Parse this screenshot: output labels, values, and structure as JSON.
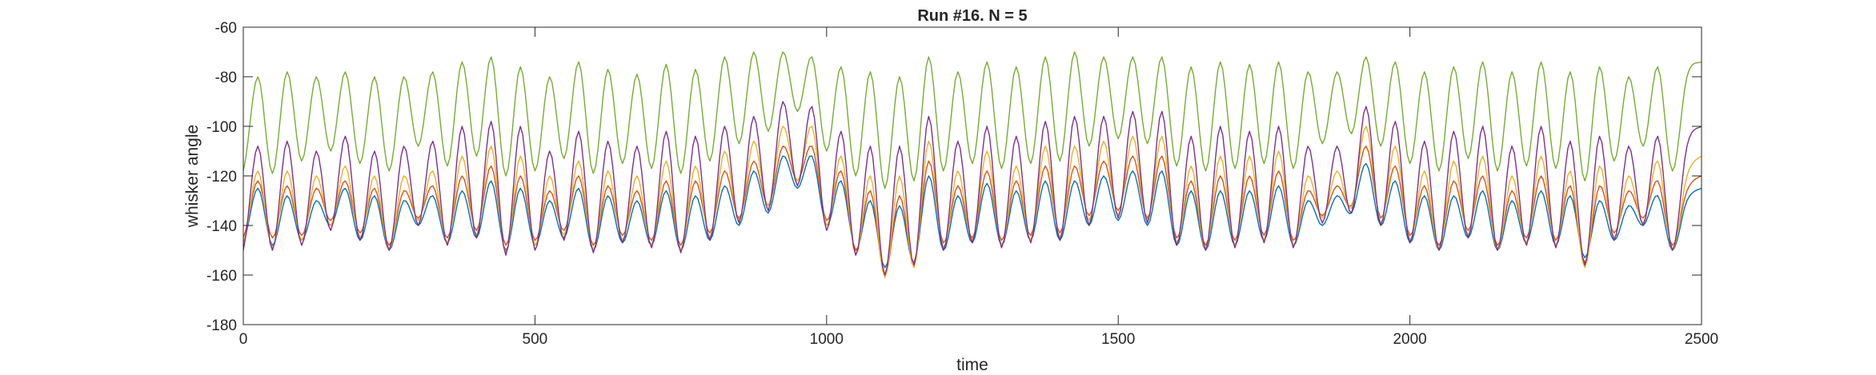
{
  "chart_data": {
    "type": "line",
    "title": "Run #16. N = 5",
    "xlabel": "time",
    "ylabel": "whisker angle",
    "xlim": [
      0,
      2500
    ],
    "ylim": [
      -180,
      -60
    ],
    "xticks": [
      0,
      500,
      1000,
      1500,
      2000,
      2500
    ],
    "yticks": [
      -180,
      -160,
      -140,
      -120,
      -100,
      -80,
      -60
    ],
    "grid": false,
    "legend": "none",
    "series_colors": [
      "#0072BD",
      "#D95319",
      "#EDB120",
      "#7E2F8E",
      "#77AC30"
    ],
    "x": [
      0,
      25,
      50,
      75,
      100,
      125,
      150,
      175,
      200,
      225,
      250,
      275,
      300,
      325,
      350,
      375,
      400,
      425,
      450,
      475,
      500,
      525,
      550,
      575,
      600,
      625,
      650,
      675,
      700,
      725,
      750,
      775,
      800,
      825,
      850,
      875,
      900,
      925,
      950,
      975,
      1000,
      1025,
      1050,
      1075,
      1100,
      1125,
      1150,
      1175,
      1200,
      1225,
      1250,
      1275,
      1300,
      1325,
      1350,
      1375,
      1400,
      1425,
      1450,
      1475,
      1500,
      1525,
      1550,
      1575,
      1600,
      1625,
      1650,
      1675,
      1700,
      1725,
      1750,
      1775,
      1800,
      1825,
      1850,
      1875,
      1900,
      1925,
      1950,
      1975,
      2000,
      2025,
      2050,
      2075,
      2100,
      2125,
      2150,
      2175,
      2200,
      2225,
      2250,
      2275,
      2300,
      2325,
      2350,
      2375,
      2400,
      2425,
      2450,
      2475,
      2500
    ],
    "series": [
      {
        "values": [
          -147,
          -125,
          -148,
          -128,
          -146,
          -130,
          -140,
          -125,
          -146,
          -128,
          -150,
          -130,
          -140,
          -128,
          -147,
          -126,
          -145,
          -122,
          -150,
          -125,
          -148,
          -130,
          -145,
          -125,
          -150,
          -128,
          -147,
          -130,
          -148,
          -126,
          -150,
          -128,
          -146,
          -124,
          -140,
          -118,
          -135,
          -112,
          -125,
          -112,
          -140,
          -122,
          -150,
          -130,
          -157,
          -132,
          -155,
          -120,
          -150,
          -128,
          -147,
          -123,
          -148,
          -126,
          -146,
          -122,
          -146,
          -122,
          -140,
          -120,
          -138,
          -118,
          -140,
          -118,
          -148,
          -126,
          -150,
          -126,
          -148,
          -126,
          -146,
          -124,
          -148,
          -130,
          -140,
          -128,
          -135,
          -115,
          -140,
          -122,
          -147,
          -128,
          -150,
          -128,
          -145,
          -126,
          -150,
          -130,
          -147,
          -126,
          -148,
          -128,
          -153,
          -130,
          -146,
          -132,
          -140,
          -128,
          -150,
          -130,
          -125
        ]
      },
      {
        "values": [
          -145,
          -122,
          -145,
          -124,
          -144,
          -125,
          -138,
          -122,
          -143,
          -125,
          -148,
          -126,
          -137,
          -124,
          -145,
          -120,
          -142,
          -116,
          -148,
          -120,
          -146,
          -126,
          -142,
          -120,
          -148,
          -124,
          -144,
          -126,
          -146,
          -122,
          -148,
          -122,
          -143,
          -118,
          -137,
          -114,
          -132,
          -108,
          -122,
          -108,
          -138,
          -118,
          -150,
          -126,
          -160,
          -128,
          -155,
          -114,
          -147,
          -124,
          -145,
          -118,
          -146,
          -122,
          -144,
          -116,
          -143,
          -116,
          -136,
          -114,
          -134,
          -112,
          -137,
          -112,
          -145,
          -122,
          -148,
          -120,
          -146,
          -120,
          -144,
          -118,
          -146,
          -126,
          -136,
          -124,
          -132,
          -108,
          -137,
          -116,
          -144,
          -124,
          -148,
          -122,
          -142,
          -120,
          -148,
          -126,
          -145,
          -120,
          -146,
          -124,
          -155,
          -124,
          -143,
          -126,
          -137,
          -122,
          -148,
          -126,
          -120
        ]
      },
      {
        "values": [
          -148,
          -118,
          -149,
          -118,
          -146,
          -120,
          -140,
          -116,
          -145,
          -120,
          -150,
          -120,
          -138,
          -118,
          -147,
          -112,
          -144,
          -108,
          -151,
          -112,
          -148,
          -120,
          -144,
          -114,
          -150,
          -118,
          -146,
          -120,
          -148,
          -114,
          -150,
          -116,
          -145,
          -110,
          -138,
          -106,
          -132,
          -100,
          -122,
          -100,
          -140,
          -112,
          -152,
          -120,
          -161,
          -120,
          -157,
          -106,
          -149,
          -118,
          -146,
          -110,
          -148,
          -116,
          -146,
          -108,
          -145,
          -108,
          -138,
          -106,
          -136,
          -104,
          -138,
          -104,
          -147,
          -116,
          -150,
          -112,
          -148,
          -112,
          -146,
          -110,
          -148,
          -120,
          -137,
          -118,
          -133,
          -100,
          -139,
          -108,
          -146,
          -118,
          -150,
          -114,
          -144,
          -112,
          -150,
          -120,
          -147,
          -112,
          -148,
          -118,
          -157,
          -116,
          -145,
          -120,
          -139,
          -114,
          -150,
          -120,
          -112
        ]
      },
      {
        "values": [
          -150,
          -108,
          -150,
          -106,
          -148,
          -110,
          -142,
          -104,
          -146,
          -110,
          -150,
          -108,
          -140,
          -106,
          -148,
          -100,
          -145,
          -98,
          -152,
          -100,
          -150,
          -110,
          -146,
          -102,
          -151,
          -106,
          -147,
          -108,
          -149,
          -102,
          -151,
          -104,
          -146,
          -100,
          -139,
          -96,
          -134,
          -90,
          -124,
          -92,
          -142,
          -102,
          -152,
          -108,
          -160,
          -108,
          -156,
          -96,
          -150,
          -106,
          -147,
          -100,
          -149,
          -104,
          -147,
          -98,
          -146,
          -96,
          -140,
          -96,
          -137,
          -94,
          -139,
          -94,
          -148,
          -104,
          -150,
          -100,
          -149,
          -102,
          -147,
          -100,
          -149,
          -108,
          -139,
          -108,
          -135,
          -92,
          -140,
          -98,
          -147,
          -106,
          -150,
          -102,
          -145,
          -100,
          -150,
          -108,
          -148,
          -100,
          -149,
          -106,
          -156,
          -104,
          -146,
          -108,
          -140,
          -104,
          -150,
          -108,
          -100
        ]
      },
      {
        "values": [
          -118,
          -80,
          -119,
          -78,
          -114,
          -80,
          -110,
          -78,
          -115,
          -80,
          -118,
          -80,
          -108,
          -78,
          -116,
          -74,
          -112,
          -72,
          -120,
          -76,
          -118,
          -80,
          -113,
          -74,
          -119,
          -77,
          -115,
          -79,
          -117,
          -75,
          -119,
          -77,
          -114,
          -72,
          -107,
          -70,
          -102,
          -70,
          -94,
          -72,
          -110,
          -76,
          -120,
          -78,
          -125,
          -80,
          -122,
          -72,
          -118,
          -78,
          -115,
          -74,
          -117,
          -76,
          -115,
          -72,
          -114,
          -70,
          -108,
          -72,
          -105,
          -72,
          -107,
          -72,
          -116,
          -76,
          -118,
          -74,
          -117,
          -75,
          -115,
          -74,
          -117,
          -78,
          -107,
          -78,
          -103,
          -72,
          -108,
          -74,
          -115,
          -78,
          -118,
          -76,
          -113,
          -74,
          -118,
          -78,
          -116,
          -74,
          -117,
          -78,
          -122,
          -76,
          -114,
          -80,
          -108,
          -76,
          -118,
          -80,
          -74
        ]
      }
    ]
  }
}
